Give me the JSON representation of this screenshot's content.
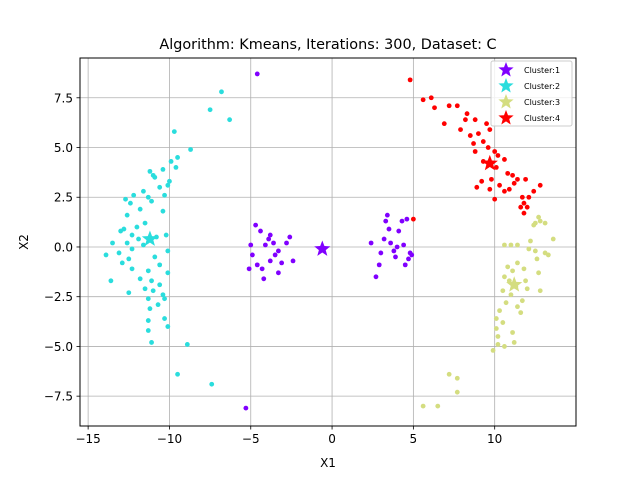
{
  "chart_data": {
    "type": "scatter",
    "title": "Algorithm: Kmeans, Iterations: 300, Dataset: C",
    "xlabel": "X1",
    "ylabel": "X2",
    "xlim": [
      -15.5,
      15
    ],
    "ylim": [
      -9,
      9.5
    ],
    "xticks": [
      -15,
      -10,
      -5,
      0,
      5,
      10
    ],
    "yticks": [
      -7.5,
      -5.0,
      -2.5,
      0.0,
      2.5,
      5.0,
      7.5
    ],
    "xtick_labels": [
      "−15",
      "−10",
      "−5",
      "0",
      "5",
      "10"
    ],
    "ytick_labels": [
      "−7.5",
      "−5.0",
      "−2.5",
      "0.0",
      "2.5",
      "5.0",
      "7.5"
    ],
    "grid": true,
    "legend_position": "top-right",
    "series": [
      {
        "name": "Cluster:1",
        "color": "#8000ff",
        "centroid": [
          -0.6,
          -0.1
        ],
        "points": [
          [
            -4.6,
            8.7
          ],
          [
            -5.3,
            -8.1
          ],
          [
            -4.7,
            1.1
          ],
          [
            -4.4,
            0.8
          ],
          [
            -5.0,
            0.1
          ],
          [
            -4.9,
            -0.4
          ],
          [
            -4.6,
            -0.9
          ],
          [
            -4.3,
            -1.1
          ],
          [
            -4.2,
            -1.6
          ],
          [
            -4.1,
            0.1
          ],
          [
            -3.9,
            0.4
          ],
          [
            -3.8,
            0.6
          ],
          [
            -3.6,
            0.2
          ],
          [
            -3.5,
            -0.4
          ],
          [
            -3.3,
            -0.2
          ],
          [
            -3.1,
            -0.8
          ],
          [
            -3.3,
            -1.3
          ],
          [
            -2.8,
            0.2
          ],
          [
            -2.6,
            0.5
          ],
          [
            -2.4,
            -0.7
          ],
          [
            -5.1,
            -1.1
          ],
          [
            -3.8,
            -0.7
          ],
          [
            2.4,
            0.2
          ],
          [
            2.7,
            -1.5
          ],
          [
            2.9,
            -0.9
          ],
          [
            3.2,
            0.4
          ],
          [
            3.3,
            1.3
          ],
          [
            3.4,
            1.6
          ],
          [
            3.5,
            0.9
          ],
          [
            3.6,
            0.2
          ],
          [
            3.8,
            -0.2
          ],
          [
            3.9,
            -0.5
          ],
          [
            4.1,
            0.8
          ],
          [
            4.3,
            1.3
          ],
          [
            4.4,
            0.1
          ],
          [
            4.6,
            1.4
          ],
          [
            4.7,
            -0.6
          ],
          [
            4.8,
            -0.3
          ],
          [
            4.9,
            -0.4
          ],
          [
            4.5,
            -0.9
          ],
          [
            3.0,
            -0.3
          ],
          [
            4.0,
            0.0
          ]
        ]
      },
      {
        "name": "Cluster:2",
        "color": "#2adddd",
        "centroid": [
          -11.2,
          0.4
        ],
        "points": [
          [
            -6.8,
            7.8
          ],
          [
            -7.5,
            6.9
          ],
          [
            -6.3,
            6.4
          ],
          [
            -9.7,
            5.8
          ],
          [
            -8.7,
            4.9
          ],
          [
            -9.5,
            4.5
          ],
          [
            -9.9,
            4.3
          ],
          [
            -9.6,
            4.0
          ],
          [
            -10.4,
            3.9
          ],
          [
            -11.2,
            3.8
          ],
          [
            -11.0,
            3.6
          ],
          [
            -10.9,
            3.5
          ],
          [
            -10.0,
            3.3
          ],
          [
            -10.1,
            3.1
          ],
          [
            -10.6,
            3.0
          ],
          [
            -11.6,
            2.8
          ],
          [
            -12.2,
            2.6
          ],
          [
            -11.3,
            2.5
          ],
          [
            -11.1,
            2.3
          ],
          [
            -12.7,
            2.4
          ],
          [
            -12.4,
            2.2
          ],
          [
            -10.3,
            2.6
          ],
          [
            -11.8,
            1.9
          ],
          [
            -10.4,
            1.8
          ],
          [
            -12.6,
            1.6
          ],
          [
            -11.5,
            1.2
          ],
          [
            -12.0,
            1.0
          ],
          [
            -12.8,
            0.9
          ],
          [
            -13.0,
            0.8
          ],
          [
            -12.3,
            0.6
          ],
          [
            -11.9,
            0.4
          ],
          [
            -12.6,
            0.2
          ],
          [
            -11.6,
            0.1
          ],
          [
            -10.8,
            0.5
          ],
          [
            -10.2,
            0.6
          ],
          [
            -13.5,
            0.2
          ],
          [
            -13.1,
            -0.3
          ],
          [
            -12.5,
            -0.6
          ],
          [
            -13.9,
            -0.4
          ],
          [
            -12.9,
            -0.8
          ],
          [
            -12.3,
            -1.1
          ],
          [
            -11.3,
            -1.2
          ],
          [
            -10.9,
            -0.5
          ],
          [
            -10.6,
            -0.9
          ],
          [
            -10.1,
            -1.3
          ],
          [
            -11.8,
            -1.6
          ],
          [
            -11.1,
            -1.7
          ],
          [
            -10.6,
            -1.9
          ],
          [
            -11.5,
            -2.1
          ],
          [
            -11.0,
            -2.2
          ],
          [
            -10.4,
            -2.4
          ],
          [
            -10.3,
            -2.6
          ],
          [
            -11.3,
            -2.6
          ],
          [
            -12.5,
            -2.3
          ],
          [
            -10.7,
            -2.9
          ],
          [
            -11.2,
            -3.1
          ],
          [
            -10.3,
            -3.6
          ],
          [
            -11.3,
            -3.7
          ],
          [
            -10.1,
            -4.0
          ],
          [
            -11.3,
            -4.2
          ],
          [
            -11.1,
            -4.8
          ],
          [
            -10.1,
            -0.2
          ],
          [
            -8.9,
            -4.9
          ],
          [
            -9.5,
            -6.4
          ],
          [
            -7.4,
            -6.9
          ],
          [
            -13.6,
            -1.7
          ],
          [
            -12.3,
            -0.1
          ]
        ]
      },
      {
        "name": "Cluster:3",
        "color": "#d4dd80",
        "centroid": [
          11.2,
          -1.9
        ],
        "points": [
          [
            10.6,
            0.1
          ],
          [
            11.0,
            0.1
          ],
          [
            11.4,
            0.1
          ],
          [
            12.1,
            -0.1
          ],
          [
            12.2,
            0.3
          ],
          [
            12.5,
            1.2
          ],
          [
            12.4,
            1.1
          ],
          [
            12.7,
            1.5
          ],
          [
            12.8,
            1.3
          ],
          [
            13.1,
            1.2
          ],
          [
            13.6,
            0.4
          ],
          [
            13.1,
            -0.3
          ],
          [
            13.3,
            -0.4
          ],
          [
            12.6,
            -0.6
          ],
          [
            12.5,
            -0.2
          ],
          [
            11.8,
            -1.1
          ],
          [
            11.4,
            -0.8
          ],
          [
            11.1,
            -1.2
          ],
          [
            10.8,
            -1.0
          ],
          [
            10.6,
            -1.5
          ],
          [
            10.9,
            -1.7
          ],
          [
            11.3,
            -2.0
          ],
          [
            11.0,
            -2.4
          ],
          [
            10.5,
            -2.2
          ],
          [
            11.9,
            -1.7
          ],
          [
            12.0,
            -2.1
          ],
          [
            12.7,
            -1.3
          ],
          [
            12.8,
            -2.2
          ],
          [
            11.7,
            -2.7
          ],
          [
            10.7,
            -2.8
          ],
          [
            11.4,
            -3.0
          ],
          [
            10.3,
            -3.2
          ],
          [
            10.1,
            -3.6
          ],
          [
            10.5,
            -3.8
          ],
          [
            11.6,
            -3.3
          ],
          [
            10.1,
            -4.1
          ],
          [
            11.1,
            -4.3
          ],
          [
            11.2,
            -4.8
          ],
          [
            10.2,
            -4.9
          ],
          [
            9.9,
            -5.2
          ],
          [
            10.6,
            -5.0
          ],
          [
            10.2,
            -4.5
          ],
          [
            7.7,
            -6.6
          ],
          [
            7.2,
            -6.4
          ],
          [
            7.7,
            -7.3
          ],
          [
            6.5,
            -8.0
          ],
          [
            5.6,
            -8.0
          ]
        ]
      },
      {
        "name": "Cluster:4",
        "color": "#ff0000",
        "centroid": [
          9.7,
          4.2
        ],
        "points": [
          [
            4.8,
            8.4
          ],
          [
            5.6,
            7.4
          ],
          [
            6.1,
            7.5
          ],
          [
            6.3,
            7.0
          ],
          [
            7.2,
            7.1
          ],
          [
            7.7,
            7.1
          ],
          [
            8.2,
            6.4
          ],
          [
            8.8,
            6.4
          ],
          [
            9.5,
            6.2
          ],
          [
            9.7,
            5.9
          ],
          [
            8.3,
            6.7
          ],
          [
            6.9,
            6.2
          ],
          [
            7.9,
            5.9
          ],
          [
            8.5,
            5.6
          ],
          [
            9.0,
            5.7
          ],
          [
            9.3,
            5.3
          ],
          [
            9.6,
            5.0
          ],
          [
            10.0,
            4.8
          ],
          [
            10.2,
            4.6
          ],
          [
            10.6,
            4.4
          ],
          [
            8.7,
            5.2
          ],
          [
            8.8,
            4.8
          ],
          [
            9.3,
            4.3
          ],
          [
            10.1,
            4.0
          ],
          [
            10.8,
            3.7
          ],
          [
            11.1,
            3.6
          ],
          [
            11.4,
            3.4
          ],
          [
            11.2,
            3.2
          ],
          [
            11.9,
            3.4
          ],
          [
            12.4,
            2.8
          ],
          [
            12.8,
            3.1
          ],
          [
            12.1,
            2.5
          ],
          [
            11.8,
            2.2
          ],
          [
            11.6,
            2.0
          ],
          [
            10.9,
            2.9
          ],
          [
            10.6,
            2.8
          ],
          [
            10.3,
            3.1
          ],
          [
            9.8,
            3.4
          ],
          [
            9.7,
            2.9
          ],
          [
            10.0,
            2.4
          ],
          [
            9.2,
            3.3
          ],
          [
            8.9,
            3.0
          ],
          [
            12.0,
            2.0
          ],
          [
            5.0,
            1.4
          ],
          [
            11.8,
            1.7
          ],
          [
            11.7,
            2.5
          ]
        ]
      }
    ]
  }
}
